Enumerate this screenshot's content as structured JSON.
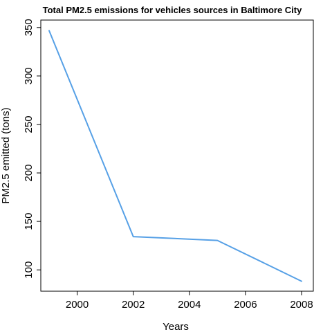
{
  "chart_data": {
    "type": "line",
    "title": "Total PM2.5 emissions for vehicles sources in Baltimore City",
    "xlabel": "Years",
    "ylabel": "PM2.5 emitted (tons)",
    "x": [
      1999,
      2002,
      2005,
      2008
    ],
    "series": [
      {
        "values": [
          346.8,
          134.3,
          130.4,
          88.3
        ]
      }
    ],
    "xlim": [
      1999,
      2008
    ],
    "ylim": [
      88,
      347
    ],
    "xticks": [
      2000,
      2002,
      2004,
      2006,
      2008
    ],
    "yticks": [
      100,
      150,
      200,
      250,
      300,
      350
    ],
    "grid": false,
    "legend": "none",
    "line_color": "#56a0e6"
  }
}
